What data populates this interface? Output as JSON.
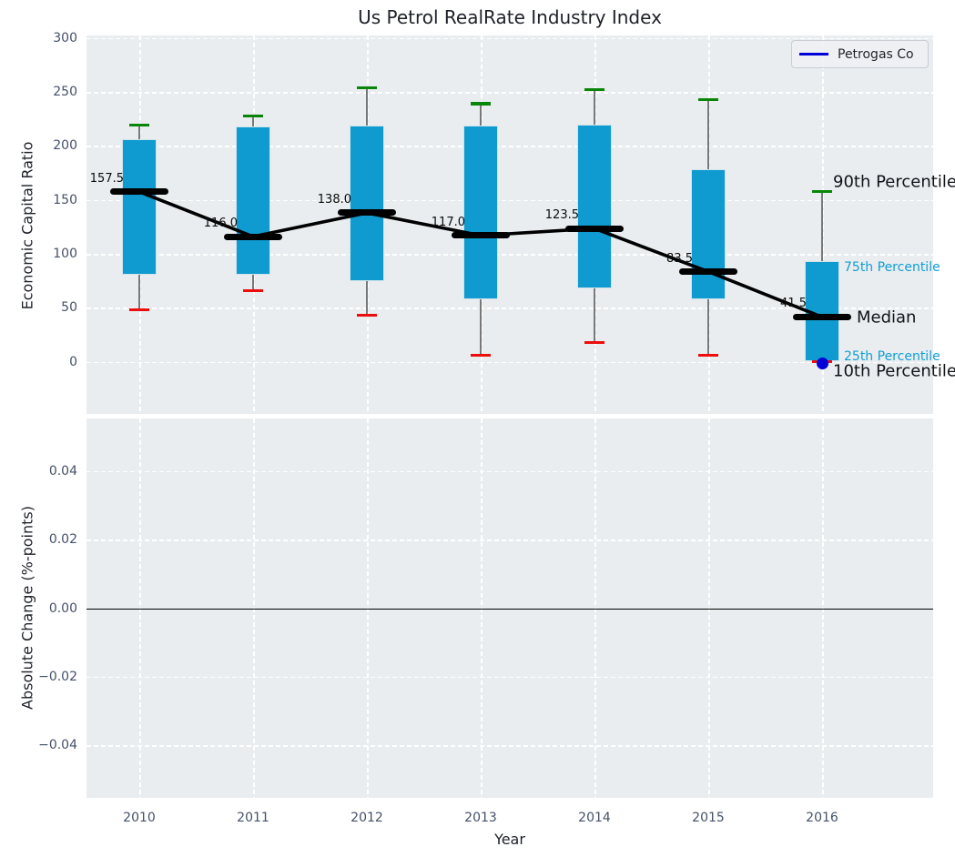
{
  "title": "Us Petrol RealRate Industry Index",
  "legend": {
    "label": "Petrogas Co",
    "line_color": "#0000d8"
  },
  "colors": {
    "box": "#0f9bcf",
    "p90_cap": "#098609",
    "p10_cap": "#ed0d0d",
    "median": "#000000",
    "overlay_point": "#0000d8",
    "annotation_small": "#119fd4",
    "panel_bg": "#e9edef",
    "tick_text": "#44516a"
  },
  "axes": {
    "top": {
      "ylabel": "Economic Capital Ratio",
      "yticks": [
        {
          "label": "0",
          "value": 0
        },
        {
          "label": "50",
          "value": 50
        },
        {
          "label": "100",
          "value": 100
        },
        {
          "label": "150",
          "value": 150
        },
        {
          "label": "200",
          "value": 200
        },
        {
          "label": "250",
          "value": 250
        },
        {
          "label": "300",
          "value": 300
        }
      ]
    },
    "bottom": {
      "ylabel": "Absolute Change (%-points)",
      "xlabel": "Year",
      "yticks": [
        {
          "label": "0.04",
          "value": 0.04
        },
        {
          "label": "0.02",
          "value": 0.02
        },
        {
          "label": "0.00",
          "value": 0
        },
        {
          "label": "−0.02",
          "value": -0.02
        },
        {
          "label": "−0.04",
          "value": -0.04
        }
      ],
      "xticks": [
        "2010",
        "2011",
        "2012",
        "2013",
        "2014",
        "2015",
        "2016"
      ]
    }
  },
  "annotations": [
    {
      "text": "90th Percentile",
      "role": "p90",
      "style": "large"
    },
    {
      "text": "75th Percentile",
      "role": "p75",
      "style": "small"
    },
    {
      "text": "Median",
      "role": "median",
      "style": "large"
    },
    {
      "text": "25th Percentile",
      "role": "p25",
      "style": "small"
    },
    {
      "text": "10th Percentile",
      "role": "p10",
      "style": "large"
    }
  ],
  "chart_data": [
    {
      "type": "boxplot",
      "title": "Us Petrol RealRate Industry Index",
      "xlabel": "Year",
      "ylabel": "Economic Capital Ratio",
      "ylim": [
        -48,
        302
      ],
      "yticks": [
        0,
        50,
        100,
        150,
        200,
        250,
        300
      ],
      "grid": true,
      "legend_position": "upper right",
      "categories": [
        "2010",
        "2011",
        "2012",
        "2013",
        "2014",
        "2015",
        "2016"
      ],
      "percentile_labels": {
        "p90": "90th Percentile",
        "p75": "75th Percentile",
        "median": "Median",
        "p25": "25th Percentile",
        "p10": "10th Percentile"
      },
      "boxes": [
        {
          "year": "2010",
          "p90": 219,
          "p75": 206,
          "median": 157.5,
          "p25": 81,
          "p10": 48
        },
        {
          "year": "2011",
          "p90": 228,
          "p75": 218,
          "median": 116.0,
          "p25": 81,
          "p10": 66
        },
        {
          "year": "2012",
          "p90": 254,
          "p75": 219,
          "median": 138.0,
          "p25": 75,
          "p10": 43
        },
        {
          "year": "2013",
          "p90": 239,
          "p75": 219,
          "median": 117.0,
          "p25": 58,
          "p10": 6
        },
        {
          "year": "2014",
          "p90": 252,
          "p75": 220,
          "median": 123.5,
          "p25": 68,
          "p10": 18
        },
        {
          "year": "2015",
          "p90": 243,
          "p75": 178,
          "median": 83.5,
          "p25": 58,
          "p10": 6
        },
        {
          "year": "2016",
          "p90": 158,
          "p75": 93,
          "median": 41.5,
          "p25": 1,
          "p10": 0
        }
      ],
      "median_line_series": {
        "name": "Median",
        "values": [
          157.5,
          116.0,
          138.0,
          117.0,
          123.5,
          83.5,
          41.5
        ]
      },
      "overlay_series": {
        "name": "Petrogas Co",
        "points": [
          {
            "x": "2016",
            "y": 0
          }
        ]
      }
    },
    {
      "type": "line",
      "xlabel": "Year",
      "ylabel": "Absolute Change (%-points)",
      "ylim": [
        -0.055,
        0.055
      ],
      "yticks": [
        -0.04,
        -0.02,
        0.0,
        0.02,
        0.04
      ],
      "x": [
        "2010",
        "2011",
        "2012",
        "2013",
        "2014",
        "2015",
        "2016"
      ],
      "series": [],
      "zero_line": true,
      "grid": true
    }
  ]
}
